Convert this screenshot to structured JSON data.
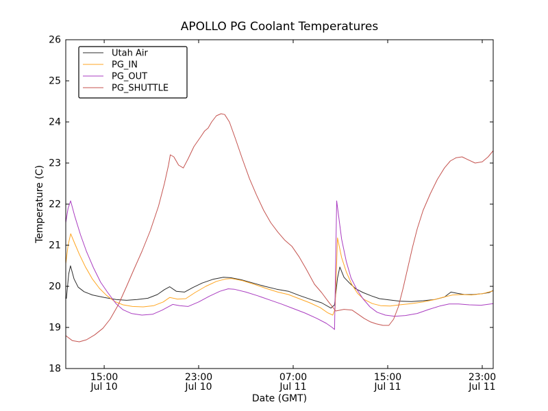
{
  "chart_data": {
    "type": "line",
    "title": "APOLLO PG Coolant Temperatures",
    "xlabel": "Date (GMT)",
    "ylabel": "Temperature (C)",
    "x_unit": "hours since Jul 10 00:00 GMT",
    "xlim": [
      11.75,
      47.93
    ],
    "ylim": [
      18,
      26
    ],
    "grid": false,
    "legend_position": "upper left",
    "y_ticks": [
      18,
      19,
      20,
      21,
      22,
      23,
      24,
      25,
      26
    ],
    "x_ticks": [
      {
        "hour": 15,
        "time": "15:00",
        "date": "Jul 10"
      },
      {
        "hour": 23,
        "time": "23:00",
        "date": "Jul 10"
      },
      {
        "hour": 31,
        "time": "07:00",
        "date": "Jul 11"
      },
      {
        "hour": 39,
        "time": "15:00",
        "date": "Jul 11"
      },
      {
        "hour": 47,
        "time": "23:00",
        "date": "Jul 11"
      }
    ],
    "series": [
      {
        "name": "Utah Air",
        "color": "#2b2b2b",
        "points": [
          [
            11.8,
            19.7
          ],
          [
            12.0,
            20.3
          ],
          [
            12.15,
            20.5
          ],
          [
            12.45,
            20.18
          ],
          [
            12.8,
            19.98
          ],
          [
            13.3,
            19.87
          ],
          [
            14.0,
            19.79
          ],
          [
            15.0,
            19.73
          ],
          [
            16.0,
            19.68
          ],
          [
            16.9,
            19.66
          ],
          [
            17.8,
            19.68
          ],
          [
            18.7,
            19.71
          ],
          [
            19.5,
            19.8
          ],
          [
            20.1,
            19.92
          ],
          [
            20.55,
            19.99
          ],
          [
            21.1,
            19.88
          ],
          [
            21.8,
            19.86
          ],
          [
            22.5,
            19.97
          ],
          [
            23.3,
            20.08
          ],
          [
            24.2,
            20.17
          ],
          [
            25.1,
            20.22
          ],
          [
            25.7,
            20.21
          ],
          [
            26.6,
            20.16
          ],
          [
            27.6,
            20.08
          ],
          [
            28.6,
            20.0
          ],
          [
            29.6,
            19.93
          ],
          [
            30.6,
            19.88
          ],
          [
            31.5,
            19.78
          ],
          [
            32.5,
            19.68
          ],
          [
            33.4,
            19.6
          ],
          [
            34.2,
            19.47
          ],
          [
            34.5,
            19.55
          ],
          [
            34.75,
            20.2
          ],
          [
            34.95,
            20.47
          ],
          [
            35.3,
            20.22
          ],
          [
            35.8,
            20.07
          ],
          [
            36.3,
            19.94
          ],
          [
            36.9,
            19.85
          ],
          [
            37.6,
            19.77
          ],
          [
            38.3,
            19.7
          ],
          [
            39.1,
            19.67
          ],
          [
            40.0,
            19.64
          ],
          [
            41.0,
            19.63
          ],
          [
            42.0,
            19.65
          ],
          [
            43.0,
            19.68
          ],
          [
            43.8,
            19.74
          ],
          [
            44.35,
            19.86
          ],
          [
            44.9,
            19.83
          ],
          [
            45.5,
            19.8
          ],
          [
            46.2,
            19.8
          ],
          [
            47.0,
            19.82
          ],
          [
            47.6,
            19.85
          ],
          [
            47.93,
            19.9
          ]
        ]
      },
      {
        "name": "PG_IN",
        "color": "#ffa520",
        "points": [
          [
            11.75,
            20.55
          ],
          [
            11.95,
            21.0
          ],
          [
            12.17,
            21.28
          ],
          [
            12.5,
            21.05
          ],
          [
            12.9,
            20.78
          ],
          [
            13.4,
            20.48
          ],
          [
            14.0,
            20.18
          ],
          [
            14.6,
            19.95
          ],
          [
            15.2,
            19.78
          ],
          [
            15.9,
            19.63
          ],
          [
            16.6,
            19.55
          ],
          [
            17.4,
            19.51
          ],
          [
            18.3,
            19.5
          ],
          [
            19.2,
            19.53
          ],
          [
            20.0,
            19.62
          ],
          [
            20.55,
            19.73
          ],
          [
            21.2,
            19.69
          ],
          [
            21.9,
            19.7
          ],
          [
            22.7,
            19.85
          ],
          [
            23.6,
            20.0
          ],
          [
            24.5,
            20.12
          ],
          [
            25.3,
            20.18
          ],
          [
            25.8,
            20.19
          ],
          [
            26.7,
            20.14
          ],
          [
            27.7,
            20.05
          ],
          [
            28.7,
            19.95
          ],
          [
            29.7,
            19.86
          ],
          [
            30.6,
            19.8
          ],
          [
            31.5,
            19.7
          ],
          [
            32.4,
            19.6
          ],
          [
            33.3,
            19.48
          ],
          [
            33.9,
            19.36
          ],
          [
            34.35,
            19.3
          ],
          [
            34.55,
            19.45
          ],
          [
            34.75,
            21.18
          ],
          [
            35.1,
            20.7
          ],
          [
            35.5,
            20.35
          ],
          [
            35.95,
            20.05
          ],
          [
            36.45,
            19.83
          ],
          [
            37.0,
            19.68
          ],
          [
            37.7,
            19.58
          ],
          [
            38.4,
            19.53
          ],
          [
            39.2,
            19.52
          ],
          [
            40.0,
            19.55
          ],
          [
            41.0,
            19.58
          ],
          [
            42.0,
            19.62
          ],
          [
            43.0,
            19.68
          ],
          [
            43.9,
            19.75
          ],
          [
            44.5,
            19.79
          ],
          [
            45.3,
            19.8
          ],
          [
            46.1,
            19.79
          ],
          [
            47.0,
            19.82
          ],
          [
            47.93,
            19.89
          ]
        ]
      },
      {
        "name": "PG_OUT",
        "color": "#a93bc0",
        "points": [
          [
            11.75,
            21.55
          ],
          [
            11.95,
            21.9
          ],
          [
            12.16,
            22.08
          ],
          [
            12.5,
            21.72
          ],
          [
            13.0,
            21.25
          ],
          [
            13.5,
            20.85
          ],
          [
            14.1,
            20.45
          ],
          [
            14.7,
            20.1
          ],
          [
            15.3,
            19.85
          ],
          [
            16.0,
            19.58
          ],
          [
            16.6,
            19.43
          ],
          [
            17.3,
            19.34
          ],
          [
            18.2,
            19.3
          ],
          [
            19.1,
            19.32
          ],
          [
            19.9,
            19.42
          ],
          [
            20.8,
            19.56
          ],
          [
            21.4,
            19.53
          ],
          [
            22.1,
            19.51
          ],
          [
            23.0,
            19.62
          ],
          [
            23.9,
            19.76
          ],
          [
            24.8,
            19.88
          ],
          [
            25.5,
            19.94
          ],
          [
            26.0,
            19.93
          ],
          [
            27.0,
            19.86
          ],
          [
            28.0,
            19.77
          ],
          [
            29.0,
            19.67
          ],
          [
            30.0,
            19.57
          ],
          [
            31.0,
            19.46
          ],
          [
            32.0,
            19.35
          ],
          [
            33.0,
            19.22
          ],
          [
            33.8,
            19.1
          ],
          [
            34.3,
            19.0
          ],
          [
            34.5,
            18.95
          ],
          [
            34.68,
            22.08
          ],
          [
            35.1,
            21.15
          ],
          [
            35.5,
            20.6
          ],
          [
            35.9,
            20.2
          ],
          [
            36.4,
            19.92
          ],
          [
            36.9,
            19.7
          ],
          [
            37.5,
            19.5
          ],
          [
            38.1,
            19.37
          ],
          [
            38.8,
            19.3
          ],
          [
            39.6,
            19.27
          ],
          [
            40.5,
            19.29
          ],
          [
            41.5,
            19.34
          ],
          [
            42.5,
            19.44
          ],
          [
            43.4,
            19.52
          ],
          [
            44.2,
            19.57
          ],
          [
            45.0,
            19.57
          ],
          [
            45.9,
            19.55
          ],
          [
            46.9,
            19.54
          ],
          [
            47.93,
            19.58
          ]
        ]
      },
      {
        "name": "PG_SHUTTLE",
        "color": "#c4524e",
        "points": [
          [
            11.75,
            18.8
          ],
          [
            12.3,
            18.68
          ],
          [
            12.9,
            18.65
          ],
          [
            13.5,
            18.7
          ],
          [
            14.2,
            18.82
          ],
          [
            14.9,
            18.98
          ],
          [
            15.5,
            19.2
          ],
          [
            16.2,
            19.55
          ],
          [
            16.9,
            20.0
          ],
          [
            17.5,
            20.4
          ],
          [
            18.2,
            20.85
          ],
          [
            18.9,
            21.35
          ],
          [
            19.6,
            21.95
          ],
          [
            20.1,
            22.5
          ],
          [
            20.45,
            22.95
          ],
          [
            20.6,
            23.2
          ],
          [
            20.9,
            23.15
          ],
          [
            21.3,
            22.95
          ],
          [
            21.7,
            22.88
          ],
          [
            22.1,
            23.1
          ],
          [
            22.6,
            23.4
          ],
          [
            23.2,
            23.65
          ],
          [
            23.5,
            23.78
          ],
          [
            23.8,
            23.85
          ],
          [
            24.1,
            24.0
          ],
          [
            24.5,
            24.15
          ],
          [
            24.9,
            24.2
          ],
          [
            25.2,
            24.18
          ],
          [
            25.6,
            24.0
          ],
          [
            26.1,
            23.6
          ],
          [
            26.7,
            23.1
          ],
          [
            27.3,
            22.62
          ],
          [
            27.9,
            22.22
          ],
          [
            28.5,
            21.85
          ],
          [
            29.1,
            21.55
          ],
          [
            29.7,
            21.32
          ],
          [
            30.3,
            21.12
          ],
          [
            30.9,
            20.97
          ],
          [
            31.5,
            20.72
          ],
          [
            32.1,
            20.42
          ],
          [
            32.8,
            20.05
          ],
          [
            33.4,
            19.85
          ],
          [
            34.0,
            19.62
          ],
          [
            34.6,
            19.4
          ],
          [
            35.3,
            19.44
          ],
          [
            36.0,
            19.42
          ],
          [
            36.5,
            19.32
          ],
          [
            37.0,
            19.22
          ],
          [
            37.5,
            19.14
          ],
          [
            38.0,
            19.09
          ],
          [
            38.6,
            19.05
          ],
          [
            39.1,
            19.05
          ],
          [
            39.5,
            19.2
          ],
          [
            39.9,
            19.5
          ],
          [
            40.3,
            19.95
          ],
          [
            40.7,
            20.45
          ],
          [
            41.1,
            20.95
          ],
          [
            41.5,
            21.4
          ],
          [
            42.0,
            21.85
          ],
          [
            42.6,
            22.25
          ],
          [
            43.2,
            22.6
          ],
          [
            43.8,
            22.88
          ],
          [
            44.3,
            23.05
          ],
          [
            44.8,
            23.13
          ],
          [
            45.3,
            23.15
          ],
          [
            45.8,
            23.08
          ],
          [
            46.4,
            23.0
          ],
          [
            47.0,
            23.03
          ],
          [
            47.5,
            23.15
          ],
          [
            47.93,
            23.3
          ]
        ]
      }
    ]
  }
}
